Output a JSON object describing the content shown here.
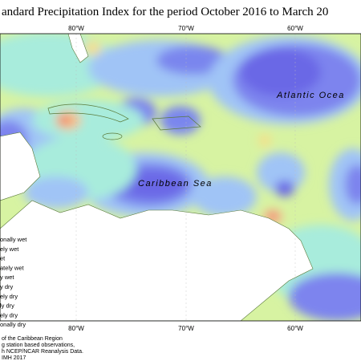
{
  "map": {
    "title": "andard Precipitation Index for the period October 2016 to March 20",
    "longitudes_top": [
      "80°W",
      "70°W",
      "60°W"
    ],
    "longitudes_bottom": [
      "80°W",
      "70°W",
      "60°W"
    ],
    "labels": {
      "ocean": "Atlantic Ocea",
      "sea": "Caribbean Sea"
    },
    "legend": [
      "onally wet",
      "ely wet",
      "et",
      "ately wet",
      "y wet",
      "y dry",
      "ely dry",
      "ly dry",
      "ely dry",
      "onally dry"
    ],
    "notes": [
      "of the Caribbean Region",
      "g station based observations,",
      "h NCEP/NCAR Reanalysis Data.",
      "IMH 2017"
    ]
  }
}
